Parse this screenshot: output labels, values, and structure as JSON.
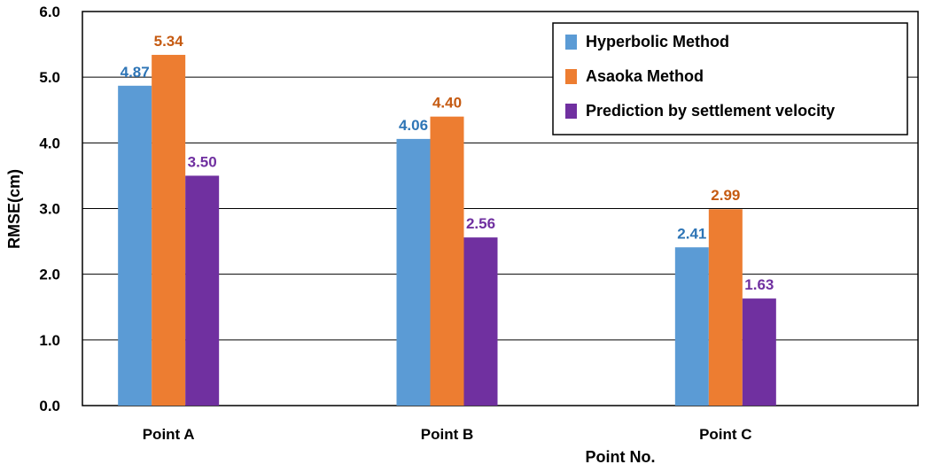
{
  "chart_data": {
    "type": "bar",
    "categories": [
      "Point A",
      "Point B",
      "Point C"
    ],
    "series": [
      {
        "name": "Hyperbolic Method",
        "values": [
          4.87,
          4.06,
          2.41
        ],
        "labels": [
          "4.87",
          "4.06",
          "2.41"
        ],
        "color": "#5B9BD5",
        "label_color": "#2E75B6"
      },
      {
        "name": "Asaoka Method",
        "values": [
          5.34,
          4.4,
          2.99
        ],
        "labels": [
          "5.34",
          "4.40",
          "2.99"
        ],
        "color": "#ED7D31",
        "label_color": "#C55A11"
      },
      {
        "name": "Prediction by settlement velocity",
        "values": [
          3.5,
          2.56,
          1.63
        ],
        "labels": [
          "3.50",
          "2.56",
          "1.63"
        ],
        "color": "#7030A0",
        "label_color": "#7030A0"
      }
    ],
    "xlabel": "Point No.",
    "ylabel": "RMSE(cm)",
    "ylim": [
      0,
      6
    ],
    "yticks": [
      "0.0",
      "1.0",
      "2.0",
      "3.0",
      "4.0",
      "5.0",
      "6.0"
    ],
    "grid": true,
    "legend": "top-right"
  }
}
